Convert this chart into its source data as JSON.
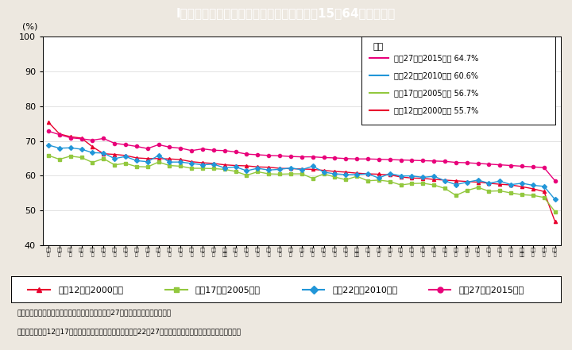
{
  "title": "I－特－３図　都道府県別　女性の就業率（15～64歳）の推移",
  "title_bg_color": "#5bc8d2",
  "title_text_color": "#ffffff",
  "bg_color": "#ede8e0",
  "plot_bg_color": "#ffffff",
  "ylabel": "(%)",
  "ylim": [
    40,
    100
  ],
  "yticks": [
    40,
    50,
    60,
    70,
    80,
    90,
    100
  ],
  "prefectures": [
    "福井県",
    "富山県",
    "島根県",
    "鳥取県",
    "石川県",
    "山形県",
    "高知県",
    "新潟県",
    "宮崎県",
    "佐賀県",
    "長野県",
    "岩手県",
    "秋田県",
    "岐阜県",
    "熊本県",
    "静岡県",
    "鹿児島県",
    "山梨県",
    "福岡県",
    "岡山県",
    "山口県",
    "大分県",
    "群馬県",
    "香川県",
    "東京都",
    "長崎県",
    "青森県",
    "三重県",
    "和歌山県",
    "滋賀県",
    "愛媛県",
    "沖縄県",
    "愛知県",
    "広島県",
    "栃木県",
    "徳島県",
    "埼玉県",
    "福島県",
    "京都府",
    "茨城県",
    "千葉県",
    "北海道",
    "宮城県",
    "神奈川県",
    "大阪府",
    "兵庫県",
    "奈良県"
  ],
  "y2000": [
    75.4,
    72.0,
    71.2,
    70.8,
    68.3,
    66.3,
    66.1,
    65.8,
    65.1,
    64.9,
    64.9,
    64.8,
    64.6,
    64.0,
    63.7,
    63.5,
    63.1,
    62.9,
    62.8,
    62.5,
    62.4,
    62.1,
    62.0,
    61.9,
    61.8,
    61.5,
    61.2,
    61.0,
    60.7,
    60.5,
    60.4,
    60.2,
    59.6,
    59.3,
    59.2,
    58.9,
    58.7,
    58.5,
    58.3,
    58.1,
    57.8,
    57.5,
    57.3,
    56.8,
    56.2,
    55.4,
    46.7
  ],
  "y2005": [
    65.8,
    64.7,
    65.6,
    65.2,
    63.8,
    64.9,
    63.1,
    63.5,
    62.6,
    62.5,
    63.9,
    62.9,
    62.7,
    62.1,
    62.1,
    62.0,
    61.8,
    61.2,
    60.1,
    61.1,
    60.5,
    60.4,
    60.5,
    60.5,
    59.2,
    60.5,
    59.6,
    58.8,
    59.8,
    58.5,
    58.7,
    58.3,
    57.3,
    57.7,
    57.8,
    57.3,
    56.3,
    54.3,
    55.7,
    56.6,
    55.5,
    55.6,
    55.0,
    54.5,
    54.3,
    53.7,
    49.6
  ],
  "y2010": [
    68.8,
    67.9,
    68.0,
    67.6,
    66.6,
    66.5,
    64.9,
    65.5,
    64.3,
    64.0,
    65.8,
    63.9,
    63.9,
    63.5,
    63.1,
    63.3,
    62.2,
    62.5,
    61.4,
    62.1,
    61.6,
    61.8,
    62.2,
    61.7,
    62.7,
    61.0,
    60.5,
    60.3,
    60.3,
    60.5,
    59.3,
    60.6,
    59.9,
    59.9,
    59.5,
    59.8,
    58.5,
    57.4,
    58.1,
    58.7,
    57.8,
    58.4,
    57.4,
    57.8,
    57.2,
    56.9,
    53.1
  ],
  "y2015": [
    72.8,
    71.8,
    70.9,
    70.6,
    70.2,
    70.7,
    69.3,
    68.9,
    68.4,
    67.8,
    68.9,
    68.2,
    67.9,
    67.2,
    67.7,
    67.3,
    67.2,
    66.8,
    66.2,
    66.0,
    65.8,
    65.7,
    65.5,
    65.4,
    65.4,
    65.2,
    65.1,
    64.9,
    64.8,
    64.8,
    64.7,
    64.6,
    64.5,
    64.4,
    64.3,
    64.2,
    64.1,
    63.8,
    63.7,
    63.5,
    63.3,
    63.1,
    62.9,
    62.7,
    62.5,
    62.3,
    58.5
  ],
  "color_2000": "#e8002d",
  "color_2005": "#92c83e",
  "color_2010": "#2196d8",
  "color_2015": "#e8007a",
  "legend_national": "全国",
  "legend_items": [
    {
      "label": "平成27年（2015年） 64.7%",
      "color": "#e8007a"
    },
    {
      "label": "平成22年（2010年） 60.6%",
      "color": "#2196d8"
    },
    {
      "label": "平成17年（2005年） 56.7%",
      "color": "#92c83e"
    },
    {
      "label": "平成12年（2000年） 55.7%",
      "color": "#e8002d"
    }
  ],
  "bottom_legend": [
    {
      "label": "平成12年（2000年）",
      "color": "#e8002d",
      "marker": "^"
    },
    {
      "label": "平成17年（2005年）",
      "color": "#92c83e",
      "marker": "s"
    },
    {
      "label": "平成22年（2010年）",
      "color": "#2196d8",
      "marker": "D"
    },
    {
      "label": "平成27年（2015年）",
      "color": "#e8007a",
      "marker": "o"
    }
  ],
  "note1": "（備考）１．总务省「国勢調査」より作成。平成27年は抜出速報集計の数値。",
  "note2": "　　　２．平成12，17年は就業状態不詳を含む総数から，22，27年は不詳を除いた総数から就業率を算出。"
}
